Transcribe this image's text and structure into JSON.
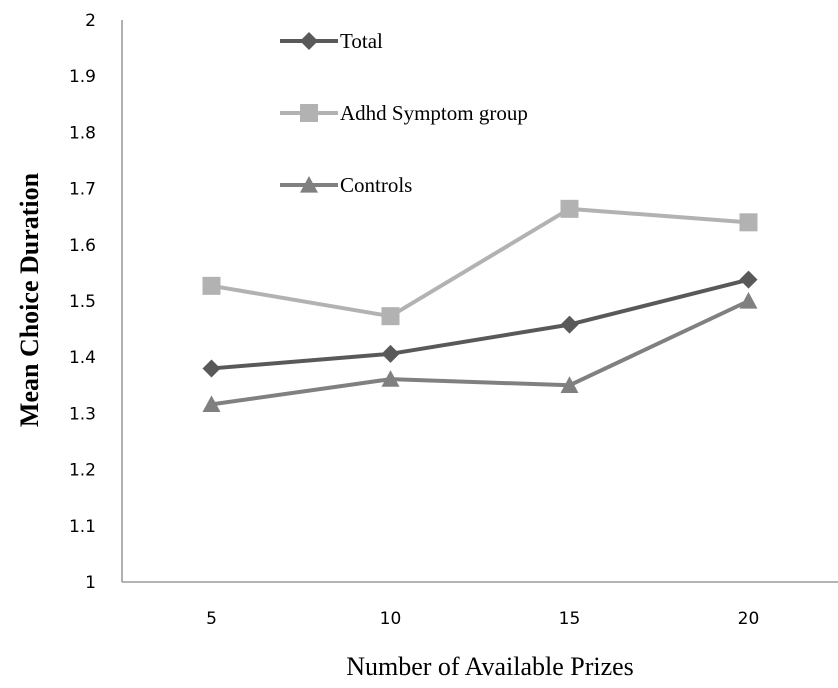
{
  "chart_data": {
    "type": "line",
    "title": "",
    "xlabel": "Number of Available Prizes",
    "ylabel": "Mean Choice Duration",
    "categories": [
      "5",
      "10",
      "15",
      "20"
    ],
    "ylim": [
      1,
      2
    ],
    "yticks": [
      "1",
      "1.1",
      "1.2",
      "1.3",
      "1.4",
      "1.5",
      "1.6",
      "1.7",
      "1.8",
      "1.9",
      "2"
    ],
    "grid": false,
    "legend_position": "top-left",
    "series": [
      {
        "name": "Total",
        "values": [
          1.38,
          1.406,
          1.458,
          1.538
        ],
        "color": "#595959",
        "marker": "diamond"
      },
      {
        "name": "Adhd Symptom group",
        "values": [
          1.527,
          1.473,
          1.664,
          1.64
        ],
        "color": "#b2b2b2",
        "marker": "square"
      },
      {
        "name": "Controls",
        "values": [
          1.316,
          1.361,
          1.35,
          1.5
        ],
        "color": "#808080",
        "marker": "triangle"
      }
    ]
  }
}
